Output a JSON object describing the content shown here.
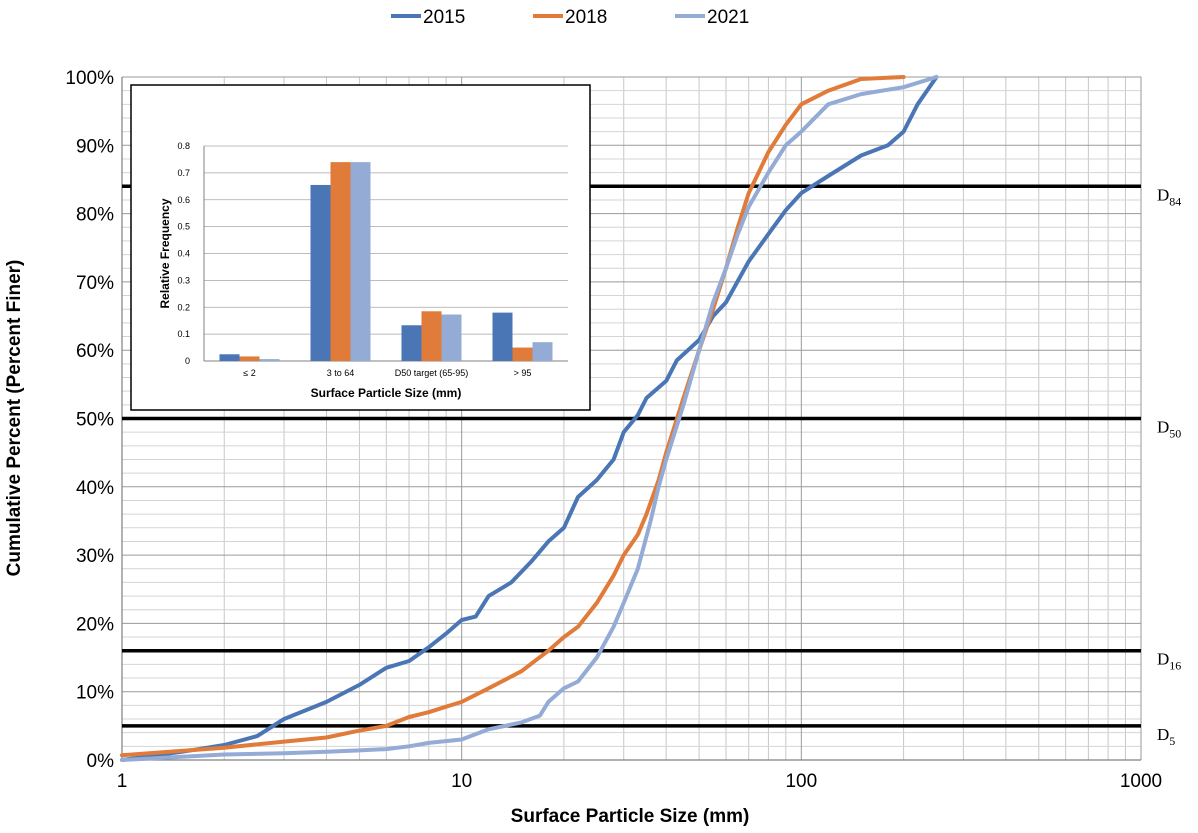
{
  "chart_data": [
    {
      "type": "line",
      "x_scale": "log",
      "xlim": [
        1,
        1000
      ],
      "ylim": [
        0,
        100
      ],
      "xlabel": "Surface Particle Size (mm)",
      "ylabel": "Cumulative Percent (Percent Finer)",
      "x_ticks": [
        "1",
        "10",
        "100",
        "1000"
      ],
      "y_ticks": [
        "0%",
        "10%",
        "20%",
        "30%",
        "40%",
        "50%",
        "60%",
        "70%",
        "80%",
        "90%",
        "100%"
      ],
      "grid": true,
      "legend_position": "top-center",
      "series": [
        {
          "name": "2015",
          "color": "#4a76b5",
          "points": [
            [
              1,
              0
            ],
            [
              1.5,
              1.2
            ],
            [
              2,
              2.2
            ],
            [
              2.5,
              3.5
            ],
            [
              3,
              6
            ],
            [
              4,
              8.5
            ],
            [
              5,
              11
            ],
            [
              6,
              13.5
            ],
            [
              7,
              14.5
            ],
            [
              8,
              16.5
            ],
            [
              9,
              18.5
            ],
            [
              10,
              20.5
            ],
            [
              11,
              21
            ],
            [
              12,
              24
            ],
            [
              14,
              26
            ],
            [
              16,
              29
            ],
            [
              18,
              32
            ],
            [
              20,
              34
            ],
            [
              22,
              38.5
            ],
            [
              25,
              41
            ],
            [
              28,
              44
            ],
            [
              30,
              48
            ],
            [
              33,
              50.5
            ],
            [
              35,
              53
            ],
            [
              40,
              55.5
            ],
            [
              43,
              58.5
            ],
            [
              50,
              61.5
            ],
            [
              55,
              65
            ],
            [
              60,
              67
            ],
            [
              70,
              73
            ],
            [
              80,
              77
            ],
            [
              90,
              80.5
            ],
            [
              100,
              83
            ],
            [
              120,
              85.5
            ],
            [
              150,
              88.5
            ],
            [
              180,
              90
            ],
            [
              200,
              92
            ],
            [
              220,
              96
            ],
            [
              250,
              100
            ]
          ]
        },
        {
          "name": "2018",
          "color": "#e07b39",
          "points": [
            [
              1,
              0.7
            ],
            [
              2,
              1.8
            ],
            [
              3,
              2.7
            ],
            [
              4,
              3.3
            ],
            [
              5,
              4.3
            ],
            [
              6,
              5
            ],
            [
              7,
              6.3
            ],
            [
              8,
              7
            ],
            [
              9,
              7.8
            ],
            [
              10,
              8.5
            ],
            [
              12,
              10.5
            ],
            [
              15,
              13
            ],
            [
              18,
              16
            ],
            [
              20,
              18
            ],
            [
              22,
              19.5
            ],
            [
              25,
              23
            ],
            [
              28,
              27
            ],
            [
              30,
              30
            ],
            [
              33,
              33
            ],
            [
              35,
              36
            ],
            [
              38,
              41
            ],
            [
              40,
              45
            ],
            [
              45,
              53
            ],
            [
              50,
              60
            ],
            [
              55,
              66
            ],
            [
              60,
              72
            ],
            [
              65,
              78
            ],
            [
              70,
              83
            ],
            [
              80,
              89
            ],
            [
              90,
              93
            ],
            [
              100,
              96
            ],
            [
              120,
              98
            ],
            [
              150,
              99.7
            ],
            [
              200,
              100
            ]
          ]
        },
        {
          "name": "2021",
          "color": "#93abd5",
          "points": [
            [
              1,
              0
            ],
            [
              2,
              0.8
            ],
            [
              3,
              1
            ],
            [
              4,
              1.2
            ],
            [
              5,
              1.4
            ],
            [
              6,
              1.6
            ],
            [
              7,
              2
            ],
            [
              8,
              2.5
            ],
            [
              10,
              3
            ],
            [
              12,
              4.5
            ],
            [
              15,
              5.5
            ],
            [
              17,
              6.5
            ],
            [
              18,
              8.5
            ],
            [
              20,
              10.5
            ],
            [
              22,
              11.5
            ],
            [
              25,
              15
            ],
            [
              28,
              19.5
            ],
            [
              30,
              23
            ],
            [
              33,
              28
            ],
            [
              36,
              35
            ],
            [
              38,
              40
            ],
            [
              40,
              44
            ],
            [
              45,
              52
            ],
            [
              50,
              60
            ],
            [
              55,
              67
            ],
            [
              60,
              72
            ],
            [
              65,
              77
            ],
            [
              70,
              81
            ],
            [
              80,
              86
            ],
            [
              90,
              90
            ],
            [
              100,
              92
            ],
            [
              120,
              96
            ],
            [
              150,
              97.5
            ],
            [
              200,
              98.5
            ],
            [
              250,
              100
            ]
          ]
        }
      ],
      "reference_lines": [
        {
          "y": 84,
          "label_main": "D",
          "label_sub": "84"
        },
        {
          "y": 50,
          "label_main": "D",
          "label_sub": "50"
        },
        {
          "y": 16,
          "label_main": "D",
          "label_sub": "16"
        },
        {
          "y": 5,
          "label_main": "D",
          "label_sub": "5"
        }
      ]
    },
    {
      "type": "bar",
      "title": "",
      "xlabel": "Surface Particle Size (mm)",
      "ylabel": "Relative Frequency",
      "ylim": [
        0,
        0.8
      ],
      "y_ticks": [
        "0",
        "0.1",
        "0.2",
        "0.3",
        "0.4",
        "0.5",
        "0.6",
        "0.7",
        "0.8"
      ],
      "categories": [
        "≤ 2",
        "3 to 64",
        "D50 target (65-95)",
        "> 95"
      ],
      "series": [
        {
          "name": "2015",
          "color": "#4a76b5",
          "values": [
            0.025,
            0.655,
            0.133,
            0.18
          ]
        },
        {
          "name": "2018",
          "color": "#e07b39",
          "values": [
            0.017,
            0.74,
            0.185,
            0.05
          ]
        },
        {
          "name": "2021",
          "color": "#93abd5",
          "values": [
            0.007,
            0.74,
            0.173,
            0.07
          ]
        }
      ]
    }
  ]
}
